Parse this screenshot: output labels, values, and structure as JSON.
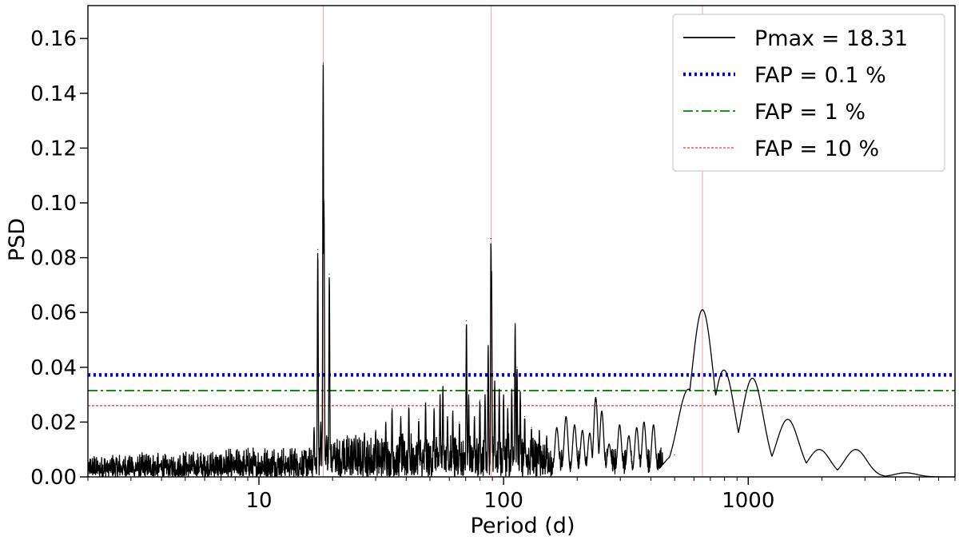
{
  "chart_data": {
    "type": "line",
    "xlabel": "Period (d)",
    "ylabel": "PSD",
    "x_scale": "log",
    "xlim": [
      2,
      7000
    ],
    "ylim": [
      0,
      0.172
    ],
    "x_ticks": [
      {
        "value": 10,
        "label": "10"
      },
      {
        "value": 100,
        "label": "100"
      },
      {
        "value": 1000,
        "label": "1000"
      }
    ],
    "y_ticks": [
      {
        "value": 0.0,
        "label": "0.00"
      },
      {
        "value": 0.02,
        "label": "0.02"
      },
      {
        "value": 0.04,
        "label": "0.04"
      },
      {
        "value": 0.06,
        "label": "0.06"
      },
      {
        "value": 0.08,
        "label": "0.08"
      },
      {
        "value": 0.1,
        "label": "0.10"
      },
      {
        "value": 0.12,
        "label": "0.12"
      },
      {
        "value": 0.14,
        "label": "0.14"
      },
      {
        "value": 0.16,
        "label": "0.16"
      }
    ],
    "grid": false,
    "legend_position": "top-right",
    "series": [
      {
        "name": "Pmax = 18.31",
        "color": "#000000",
        "style": "solid",
        "peaks": [
          {
            "x": 16.8,
            "y": 0.018
          },
          {
            "x": 17.4,
            "y": 0.083
          },
          {
            "x": 17.9,
            "y": 0.02
          },
          {
            "x": 18.31,
            "y": 0.151
          },
          {
            "x": 18.45,
            "y": 0.101
          },
          {
            "x": 18.9,
            "y": 0.015
          },
          {
            "x": 19.4,
            "y": 0.074
          },
          {
            "x": 20.2,
            "y": 0.012
          },
          {
            "x": 22.0,
            "y": 0.013
          },
          {
            "x": 24.5,
            "y": 0.014
          },
          {
            "x": 27.0,
            "y": 0.016
          },
          {
            "x": 30.0,
            "y": 0.017
          },
          {
            "x": 33.0,
            "y": 0.02
          },
          {
            "x": 35.0,
            "y": 0.025
          },
          {
            "x": 38.0,
            "y": 0.022
          },
          {
            "x": 41.0,
            "y": 0.026
          },
          {
            "x": 45.0,
            "y": 0.021
          },
          {
            "x": 48.0,
            "y": 0.027
          },
          {
            "x": 52.0,
            "y": 0.025
          },
          {
            "x": 55.0,
            "y": 0.03
          },
          {
            "x": 56.5,
            "y": 0.033
          },
          {
            "x": 59.0,
            "y": 0.022
          },
          {
            "x": 62.0,
            "y": 0.024
          },
          {
            "x": 66.0,
            "y": 0.02
          },
          {
            "x": 70.5,
            "y": 0.057
          },
          {
            "x": 72.0,
            "y": 0.03
          },
          {
            "x": 76.0,
            "y": 0.022
          },
          {
            "x": 80.0,
            "y": 0.028
          },
          {
            "x": 84.0,
            "y": 0.03
          },
          {
            "x": 86.5,
            "y": 0.048
          },
          {
            "x": 88.8,
            "y": 0.087
          },
          {
            "x": 89.3,
            "y": 0.075
          },
          {
            "x": 92.0,
            "y": 0.035
          },
          {
            "x": 96.0,
            "y": 0.032
          },
          {
            "x": 100.0,
            "y": 0.03
          },
          {
            "x": 104.0,
            "y": 0.025
          },
          {
            "x": 108.0,
            "y": 0.032
          },
          {
            "x": 111.5,
            "y": 0.056
          },
          {
            "x": 113.5,
            "y": 0.04
          },
          {
            "x": 117.0,
            "y": 0.031
          },
          {
            "x": 122.0,
            "y": 0.022
          },
          {
            "x": 130.0,
            "y": 0.018
          },
          {
            "x": 140.0,
            "y": 0.017
          },
          {
            "x": 150.0,
            "y": 0.015
          },
          {
            "x": 165.0,
            "y": 0.018
          },
          {
            "x": 180.0,
            "y": 0.022
          },
          {
            "x": 195.0,
            "y": 0.019
          },
          {
            "x": 210.0,
            "y": 0.017
          },
          {
            "x": 225.0,
            "y": 0.016
          },
          {
            "x": 238.0,
            "y": 0.029
          },
          {
            "x": 252.0,
            "y": 0.024
          },
          {
            "x": 270.0,
            "y": 0.012
          },
          {
            "x": 298.0,
            "y": 0.019
          },
          {
            "x": 325.0,
            "y": 0.015
          },
          {
            "x": 350.0,
            "y": 0.018
          },
          {
            "x": 375.0,
            "y": 0.02
          },
          {
            "x": 410.0,
            "y": 0.019
          },
          {
            "x": 500.0,
            "y": 0.008
          },
          {
            "x": 570.0,
            "y": 0.032
          },
          {
            "x": 650.0,
            "y": 0.061
          },
          {
            "x": 795.0,
            "y": 0.039
          },
          {
            "x": 1040.0,
            "y": 0.036
          },
          {
            "x": 1450.0,
            "y": 0.021
          },
          {
            "x": 1950.0,
            "y": 0.01
          },
          {
            "x": 2750.0,
            "y": 0.01
          },
          {
            "x": 4400.0,
            "y": 0.0015
          }
        ]
      },
      {
        "name": "FAP = 0.1 %",
        "color": "#0000ee",
        "style": "dotted",
        "y": 0.0372
      },
      {
        "name": "FAP = 1 %",
        "color": "#008800",
        "style": "dashdot",
        "y": 0.0315
      },
      {
        "name": "FAP = 10 %",
        "color": "#ee0000",
        "style": "dashed",
        "y": 0.026
      }
    ],
    "vertical_lines": [
      {
        "x": 18.31,
        "color": "#f0a0a0"
      },
      {
        "x": 89.0,
        "color": "#f0a0a0"
      },
      {
        "x": 650.0,
        "color": "#f0a0a0"
      }
    ]
  }
}
